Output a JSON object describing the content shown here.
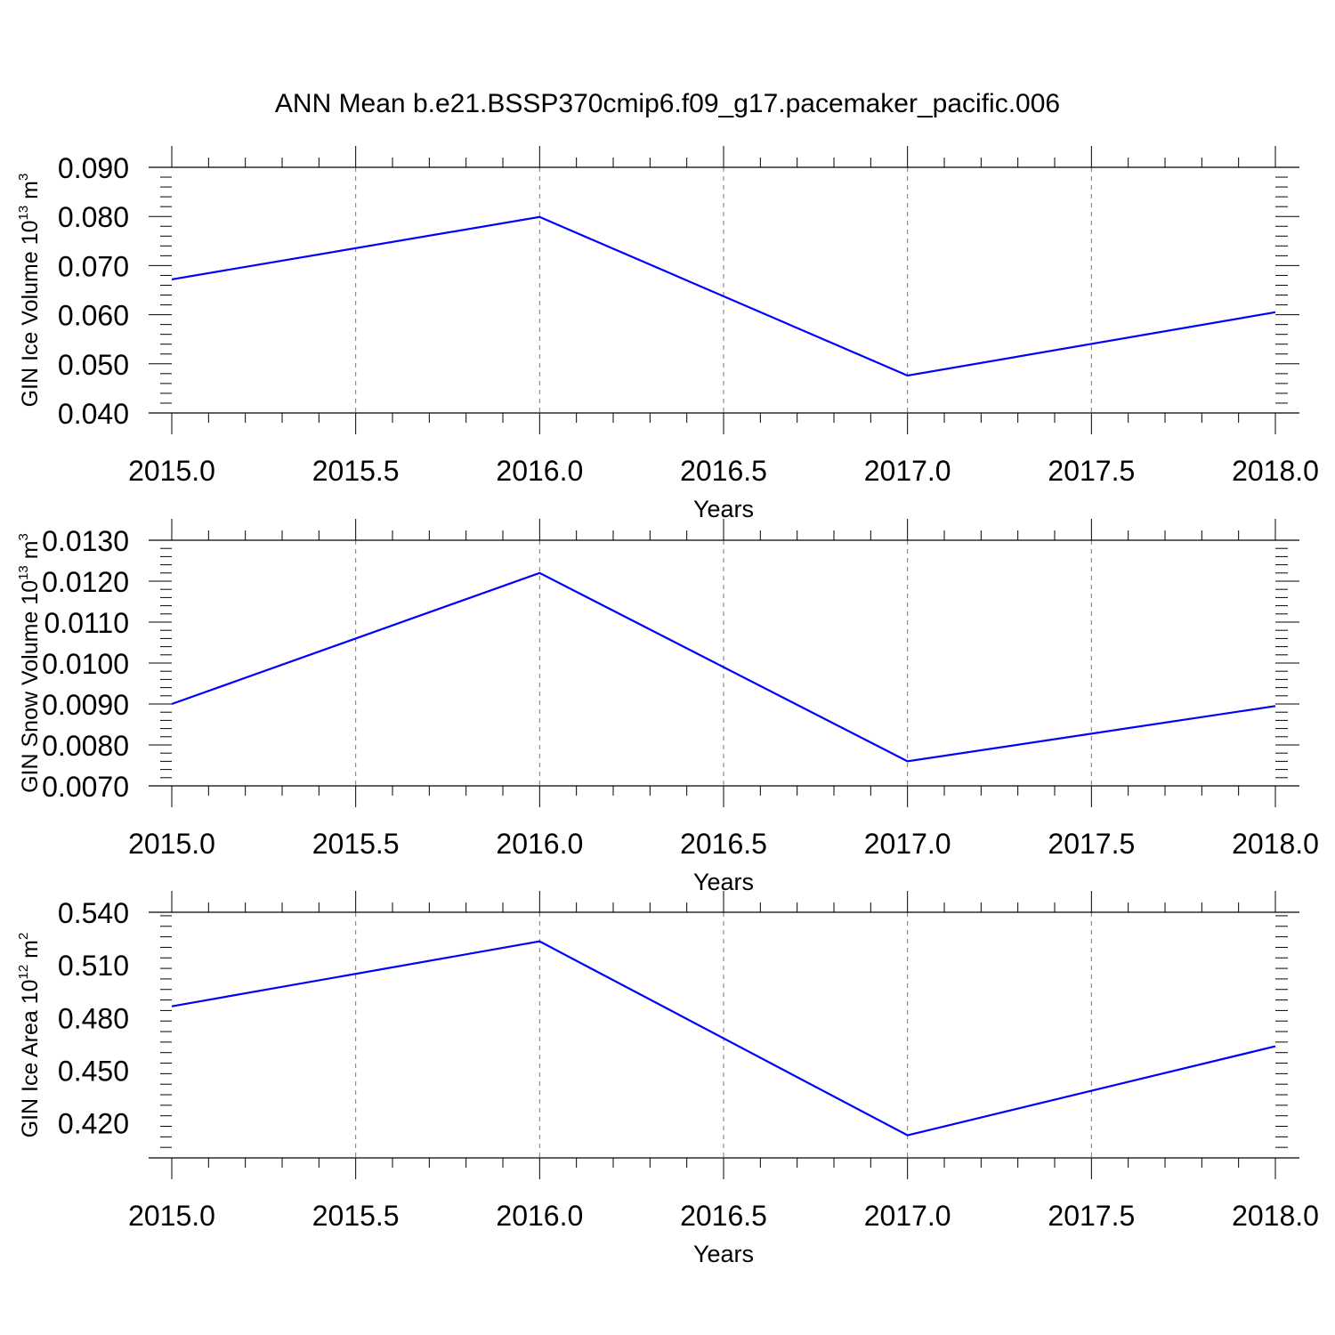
{
  "title": "ANN Mean b.e21.BSSP370cmip6.f09_g17.pacemaker_pacific.006",
  "colors": {
    "line": "#0000ff",
    "axes": "#000000",
    "grid": "#777777"
  },
  "chart_data": [
    {
      "type": "line",
      "ylabel": {
        "text": "GIN Ice Volume 10",
        "sup": "13",
        "unit": " m",
        "unit_sup": "3"
      },
      "xlabel": "Years",
      "xlim": [
        2015.0,
        2018.0
      ],
      "ylim": [
        0.04,
        0.09
      ],
      "xticks": [
        "2015.0",
        "2015.5",
        "2016.0",
        "2016.5",
        "2017.0",
        "2017.5",
        "2018.0"
      ],
      "yticks": [
        "0.040",
        "0.050",
        "0.060",
        "0.070",
        "0.080",
        "0.090"
      ],
      "grid": "vertical dashed at major x ticks",
      "series": [
        {
          "x": [
            2015,
            2016,
            2017,
            2018
          ],
          "values": [
            0.0672,
            0.0799,
            0.0476,
            0.0605
          ]
        }
      ]
    },
    {
      "type": "line",
      "ylabel": {
        "text": "GIN Snow Volume 10",
        "sup": "13",
        "unit": " m",
        "unit_sup": "3"
      },
      "xlabel": "Years",
      "xlim": [
        2015.0,
        2018.0
      ],
      "ylim": [
        0.007,
        0.013
      ],
      "xticks": [
        "2015.0",
        "2015.5",
        "2016.0",
        "2016.5",
        "2017.0",
        "2017.5",
        "2018.0"
      ],
      "yticks": [
        "0.0070",
        "0.0080",
        "0.0090",
        "0.0100",
        "0.0110",
        "0.0120",
        "0.0130"
      ],
      "grid": "vertical dashed at major x ticks",
      "series": [
        {
          "x": [
            2015,
            2016,
            2017,
            2018
          ],
          "values": [
            0.009,
            0.0122,
            0.0076,
            0.00895
          ]
        }
      ]
    },
    {
      "type": "line",
      "ylabel": {
        "text": "GIN Ice Area 10",
        "sup": "12",
        "unit": " m",
        "unit_sup": "2"
      },
      "xlabel": "Years",
      "xlim": [
        2015.0,
        2018.0
      ],
      "ylim": [
        0.4,
        0.54
      ],
      "xticks": [
        "2015.0",
        "2015.5",
        "2016.0",
        "2016.5",
        "2017.0",
        "2017.5",
        "2018.0"
      ],
      "yticks": [
        "0.420",
        "0.450",
        "0.480",
        "0.510",
        "0.540"
      ],
      "grid": "vertical dashed at major x ticks",
      "series": [
        {
          "x": [
            2015,
            2016,
            2017,
            2018
          ],
          "values": [
            0.4864,
            0.5234,
            0.4129,
            0.4636
          ]
        }
      ]
    }
  ]
}
